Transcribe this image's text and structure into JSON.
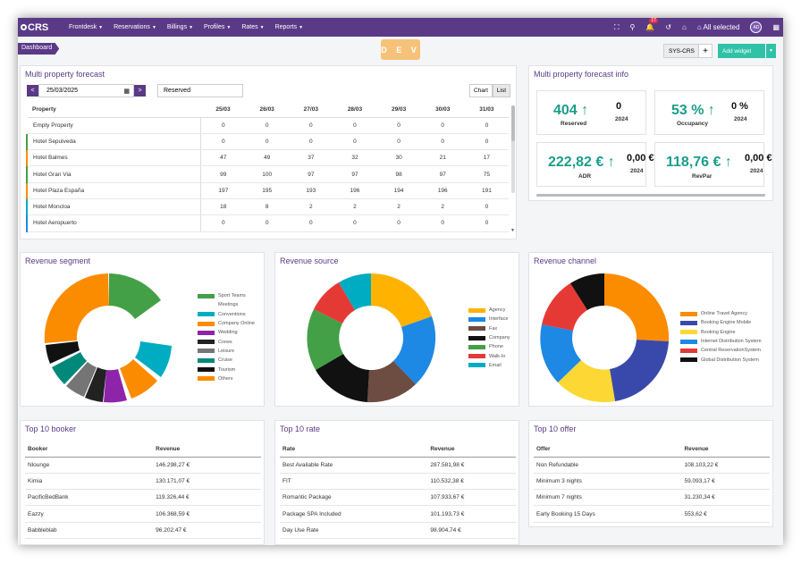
{
  "nav": {
    "logo": "CRS",
    "items": [
      "Frontdesk",
      "Reservations",
      "Billings",
      "Profiles",
      "Rates",
      "Reports"
    ],
    "notifications": "17",
    "all_selected": "All selected",
    "avatar": "AD"
  },
  "breadcrumb": "Dashboard",
  "env_label": "D E V",
  "toolbar": {
    "property": "SYS-CRS",
    "plus": "+",
    "add_widget": "Add widget"
  },
  "forecast": {
    "title": "Multi property forecast",
    "date": "25/03/2025",
    "select_value": "Reserved",
    "view_chart": "Chart",
    "view_list": "List",
    "columns": [
      "Property",
      "25/03",
      "26/03",
      "27/03",
      "28/03",
      "29/03",
      "30/03",
      "31/03"
    ],
    "rows": [
      {
        "name": "Empty Property",
        "color": "",
        "values": [
          "0",
          "0",
          "0",
          "0",
          "0",
          "0",
          "0"
        ]
      },
      {
        "name": "Hotel Sepulveda",
        "color": "#43a047",
        "values": [
          "0",
          "0",
          "0",
          "0",
          "0",
          "0",
          "0"
        ]
      },
      {
        "name": "Hotel Balmes",
        "color": "#fb8c00",
        "values": [
          "47",
          "49",
          "37",
          "32",
          "30",
          "21",
          "17"
        ]
      },
      {
        "name": "Hotel Gran Via",
        "color": "#43a047",
        "values": [
          "99",
          "100",
          "97",
          "97",
          "98",
          "97",
          "75"
        ]
      },
      {
        "name": "Hotel Plaza España",
        "color": "#fb8c00",
        "values": [
          "197",
          "195",
          "193",
          "196",
          "194",
          "196",
          "191"
        ]
      },
      {
        "name": "Hotel Moncloa",
        "color": "#00acc1",
        "values": [
          "18",
          "8",
          "2",
          "2",
          "2",
          "2",
          "0"
        ]
      },
      {
        "name": "Hotel Aeropuerto",
        "color": "#1e88e5",
        "values": [
          "0",
          "0",
          "0",
          "0",
          "0",
          "0",
          "0"
        ]
      }
    ]
  },
  "forecast_info": {
    "title": "Multi property forecast info",
    "kpis": [
      {
        "value": "404",
        "label": "Reserved",
        "compare": "0",
        "year": "2024"
      },
      {
        "value": "53 %",
        "label": "Occupancy",
        "compare": "0 %",
        "year": "2024"
      },
      {
        "value": "222,82 €",
        "label": "ADR",
        "compare": "0,00 €",
        "year": "2024"
      },
      {
        "value": "118,76 €",
        "label": "RevPar",
        "compare": "0,00 €",
        "year": "2024"
      }
    ]
  },
  "segment": {
    "title": "Revenue segment",
    "legend": [
      {
        "label": "Sport Teams",
        "color": "#43a047"
      },
      {
        "label": "Meetings",
        "color": ""
      },
      {
        "label": "Conventions",
        "color": "#00acc1"
      },
      {
        "label": "Company Online",
        "color": "#fb8c00"
      },
      {
        "label": "Wedding",
        "color": "#8e24aa"
      },
      {
        "label": "Crews",
        "color": "#222222"
      },
      {
        "label": "Leisure",
        "color": "#757575"
      },
      {
        "label": "Cruise",
        "color": "#00897b"
      },
      {
        "label": "Tourism",
        "color": "#111111"
      },
      {
        "label": "Others",
        "color": "#fb8c00"
      }
    ]
  },
  "source": {
    "title": "Revenue source",
    "legend": [
      {
        "label": "Agency",
        "color": "#ffb300"
      },
      {
        "label": "Interface",
        "color": "#1e88e5"
      },
      {
        "label": "Fax",
        "color": "#6d4c41"
      },
      {
        "label": "Company",
        "color": "#111111"
      },
      {
        "label": "Phone",
        "color": "#43a047"
      },
      {
        "label": "Walk-In",
        "color": "#e53935"
      },
      {
        "label": "Email",
        "color": "#00acc1"
      }
    ]
  },
  "channel": {
    "title": "Revenue channel",
    "legend": [
      {
        "label": "Online Travel Agency",
        "color": "#fb8c00"
      },
      {
        "label": "Booking Engine Mobile",
        "color": "#3949ab"
      },
      {
        "label": "Booking Engine",
        "color": "#fdd835"
      },
      {
        "label": "Internet Distribution System",
        "color": "#1e88e5"
      },
      {
        "label": "Central ReservationSystem",
        "color": "#e53935"
      },
      {
        "label": "Global Distribution System",
        "color": "#111111"
      }
    ]
  },
  "top_booker": {
    "title": "Top 10 booker",
    "headers": [
      "Booker",
      "Revenue"
    ],
    "rows": [
      [
        "Nlounge",
        "146.298,27 €"
      ],
      [
        "Kimia",
        "130.171,07 €"
      ],
      [
        "PacificBedBank",
        "119.326,44 €"
      ],
      [
        "Eazzy",
        "106.368,59 €"
      ],
      [
        "Babbleblab",
        "96.202,47 €"
      ]
    ]
  },
  "top_rate": {
    "title": "Top 10 rate",
    "headers": [
      "Rate",
      "Revenue"
    ],
    "rows": [
      [
        "Best Available Rate",
        "287.581,98 €"
      ],
      [
        "FIT",
        "110.532,38 €"
      ],
      [
        "Romantic Package",
        "107.933,67 €"
      ],
      [
        "Package SPA Included",
        "101.193,73 €"
      ],
      [
        "Day Use Rate",
        "98.904,74 €"
      ]
    ]
  },
  "top_offer": {
    "title": "Top 10 offer",
    "headers": [
      "Offer",
      "Revenue"
    ],
    "rows": [
      [
        "Non Refundable",
        "108.103,22 €"
      ],
      [
        "Minimum 3 nights",
        "59.093,17 €"
      ],
      [
        "Minimum 7 nights",
        "31.230,34 €"
      ],
      [
        "Early Booking 15 Days",
        "553,62 €"
      ]
    ]
  }
}
